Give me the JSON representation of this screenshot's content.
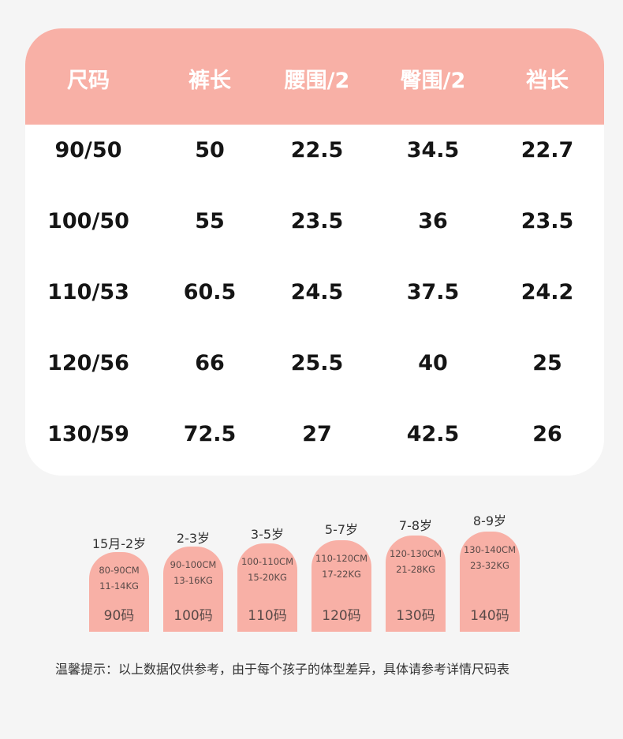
{
  "table": {
    "headers": [
      "尺码",
      "裤长",
      "腰围/2",
      "臀围/2",
      "裆长"
    ],
    "rows": [
      [
        "90/50",
        "50",
        "22.5",
        "34.5",
        "22.7"
      ],
      [
        "100/50",
        "55",
        "23.5",
        "36",
        "23.5"
      ],
      [
        "110/53",
        "60.5",
        "24.5",
        "37.5",
        "24.2"
      ],
      [
        "120/56",
        "66",
        "25.5",
        "40",
        "25"
      ],
      [
        "130/59",
        "72.5",
        "27",
        "42.5",
        "26"
      ]
    ]
  },
  "size_guide": [
    {
      "age": "15月-2岁",
      "height": "80-90CM",
      "weight": "11-14KG",
      "code": "90码"
    },
    {
      "age": "2-3岁",
      "height": "90-100CM",
      "weight": "13-16KG",
      "code": "100码"
    },
    {
      "age": "3-5岁",
      "height": "100-110CM",
      "weight": "15-20KG",
      "code": "110码"
    },
    {
      "age": "5-7岁",
      "height": "110-120CM",
      "weight": "17-22KG",
      "code": "120码"
    },
    {
      "age": "7-8岁",
      "height": "120-130CM",
      "weight": "21-28KG",
      "code": "130码"
    },
    {
      "age": "8-9岁",
      "height": "130-140CM",
      "weight": "23-32KG",
      "code": "140码"
    }
  ],
  "tip": "温馨提示：以上数据仅供参考，由于每个孩子的体型差异，具体请参考详情尺码表",
  "colors": {
    "accent": "#f8b0a6",
    "card": "#ffffff",
    "background": "#f5f5f5"
  }
}
